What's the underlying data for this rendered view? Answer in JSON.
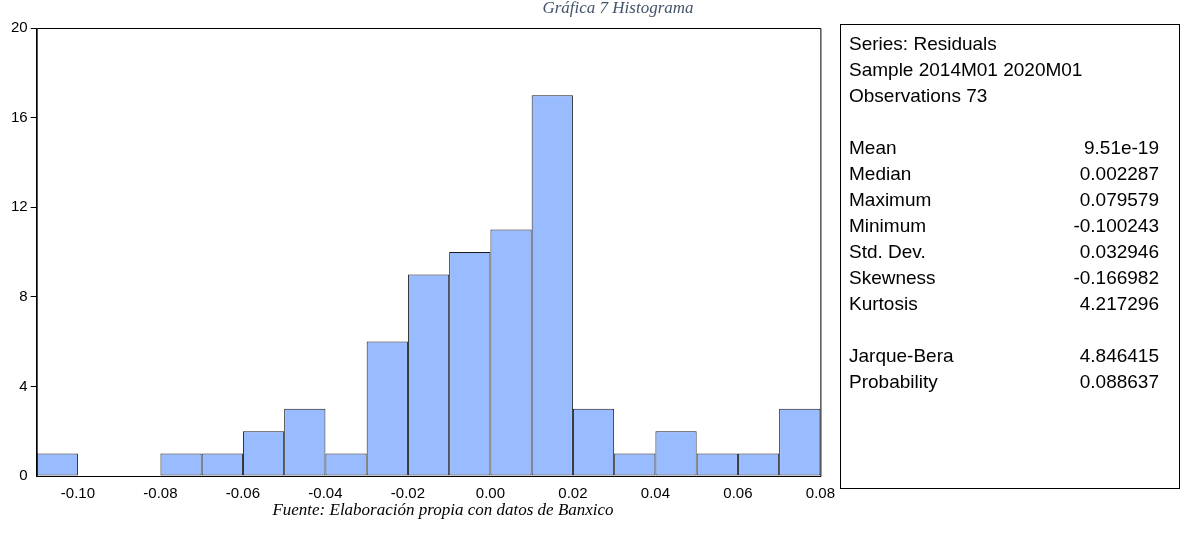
{
  "chart_data": [
    {
      "type": "histogram",
      "title": "Gráfica 7 Histograma",
      "bins": [
        -0.11,
        -0.1,
        -0.09,
        -0.08,
        -0.07,
        -0.06,
        -0.05,
        -0.04,
        -0.03,
        -0.02,
        -0.01,
        0,
        0.01,
        0.02,
        0.03,
        0.04,
        0.05,
        0.06,
        0.07,
        0.08
      ],
      "values": [
        1,
        0,
        0,
        1,
        1,
        2,
        3,
        1,
        6,
        9,
        10,
        11,
        17,
        3,
        1,
        2,
        1,
        1,
        3
      ],
      "color": "#99bbff",
      "xlim": [
        -0.11,
        0.08
      ],
      "xticks": [
        {
          "value": -0.1,
          "label": "-0.10"
        },
        {
          "value": -0.08,
          "label": "-0.08"
        },
        {
          "value": -0.06,
          "label": "-0.06"
        },
        {
          "value": -0.04,
          "label": "-0.04"
        },
        {
          "value": -0.02,
          "label": "-0.02"
        },
        {
          "value": 0,
          "label": "0.00"
        },
        {
          "value": 0.02,
          "label": "0.02"
        },
        {
          "value": 0.04,
          "label": "0.04"
        },
        {
          "value": 0.06,
          "label": "0.06"
        },
        {
          "value": 0.08,
          "label": "0.08"
        }
      ],
      "ylim": [
        0,
        20
      ],
      "yticks": [
        0,
        4,
        8,
        12,
        16,
        20
      ],
      "grid": false,
      "legend": false,
      "annotations": [
        "Fuente: Elaboración propia con datos de Banxico"
      ]
    },
    {
      "type": "other",
      "annotations": [
        "Series: Residuals",
        "Sample 2014M01 2020M01",
        "Observations 73",
        "Mean\t9.51e-19",
        "Median\t0.002287",
        "Maximum\t0.079579",
        "Minimum\t-0.100243",
        "Std. Dev.\t0.032946",
        "Skewness\t-0.166982",
        "Kurtosis\t4.217296",
        "Jarque-Bera\t4.846415",
        "Probability\t0.088637"
      ]
    }
  ]
}
